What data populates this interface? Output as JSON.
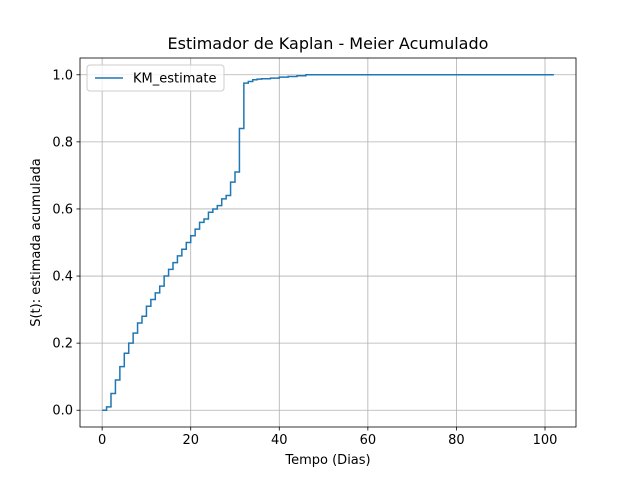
{
  "chart_data": {
    "type": "line",
    "title": "Estimador de Kaplan - Meier Acumulado",
    "xlabel": "Tempo (Dias)",
    "ylabel": "S(t): estimada acumulada",
    "xlim": [
      -5,
      107
    ],
    "ylim": [
      -0.05,
      1.05
    ],
    "xticks": [
      0,
      20,
      40,
      60,
      80,
      100
    ],
    "yticks": [
      0.0,
      0.2,
      0.4,
      0.6,
      0.8,
      1.0
    ],
    "xtick_labels": [
      "0",
      "20",
      "40",
      "60",
      "80",
      "100"
    ],
    "ytick_labels": [
      "0.0",
      "0.2",
      "0.4",
      "0.6",
      "0.8",
      "1.0"
    ],
    "grid": true,
    "legend_position": "top-left",
    "series": [
      {
        "name": "KM_estimate",
        "color": "#1f77b4",
        "drawstyle": "steps-post",
        "x": [
          0,
          1,
          2,
          3,
          4,
          5,
          6,
          7,
          8,
          9,
          10,
          11,
          12,
          13,
          14,
          15,
          16,
          17,
          18,
          19,
          20,
          21,
          22,
          23,
          24,
          25,
          26,
          27,
          28,
          29,
          30,
          31,
          32,
          33,
          34,
          35,
          36,
          38,
          40,
          42,
          44,
          46,
          50,
          60,
          80,
          102
        ],
        "y": [
          0.0,
          0.01,
          0.05,
          0.09,
          0.13,
          0.17,
          0.2,
          0.23,
          0.26,
          0.28,
          0.31,
          0.33,
          0.35,
          0.37,
          0.4,
          0.42,
          0.44,
          0.46,
          0.48,
          0.5,
          0.52,
          0.54,
          0.56,
          0.57,
          0.59,
          0.6,
          0.61,
          0.63,
          0.64,
          0.68,
          0.71,
          0.84,
          0.975,
          0.98,
          0.985,
          0.987,
          0.988,
          0.99,
          0.993,
          0.995,
          0.997,
          1.0,
          1.0,
          1.0,
          1.0,
          1.0
        ]
      }
    ]
  }
}
